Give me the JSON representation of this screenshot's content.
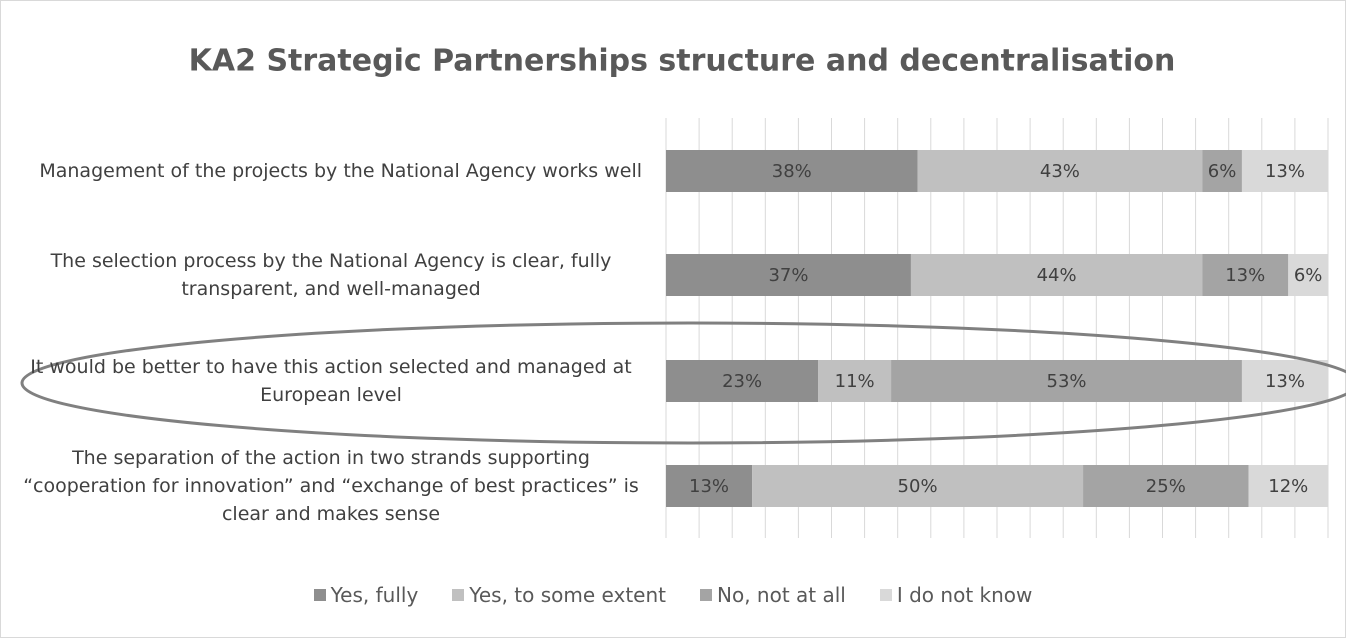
{
  "chart_data": {
    "type": "stacked_barh",
    "title": "KA2 Strategic Partnerships structure and decentralisation",
    "categories": [
      "Management of the projects by the National Agency works well",
      "The selection process by the National Agency is clear, fully transparent, and well-managed",
      "It would be better to have this action selected and managed at European level",
      "The separation of the action in two strands supporting “cooperation for innovation” and “exchange of best practices” is clear and makes sense"
    ],
    "series": [
      {
        "name": "Yes, fully",
        "color": "#8e8e8e",
        "values": [
          38,
          37,
          23,
          13
        ],
        "value_labels": [
          "38%",
          "37%",
          "23%",
          "13%"
        ]
      },
      {
        "name": "Yes, to some extent",
        "color": "#c0c0c0",
        "values": [
          43,
          44,
          11,
          50
        ],
        "value_labels": [
          "43%",
          "44%",
          "11%",
          "50%"
        ]
      },
      {
        "name": "No, not at all",
        "color": "#a4a4a4",
        "values": [
          6,
          13,
          53,
          25
        ],
        "value_labels": [
          "6%",
          "13%",
          "53%",
          "25%"
        ]
      },
      {
        "name": "I do not know",
        "color": "#d9d9d9",
        "values": [
          13,
          6,
          13,
          12
        ],
        "value_labels": [
          "13%",
          "6%",
          "13%",
          "12%"
        ]
      }
    ],
    "xlim": [
      0,
      100
    ],
    "xticks": [
      0,
      5,
      10,
      15,
      20,
      25,
      30,
      35,
      40,
      45,
      50,
      55,
      60,
      65,
      70,
      75,
      80,
      85,
      90,
      95,
      100
    ],
    "grid": true,
    "legend": "bottom"
  }
}
